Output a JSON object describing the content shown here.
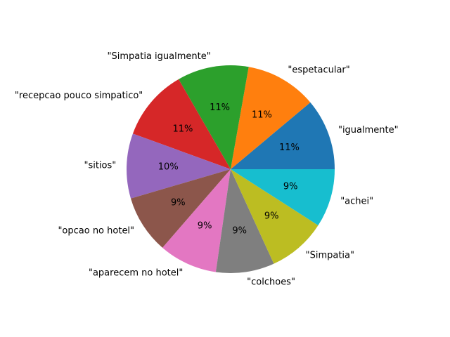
{
  "chart_data": {
    "type": "pie",
    "title": "",
    "start_angle_deg": 0,
    "direction": "counterclockwise",
    "slices": [
      {
        "label": "\"igualmente\"",
        "value": 11,
        "pct_label": "11%",
        "color": "#1f77b4"
      },
      {
        "label": "\"espetacular\"",
        "value": 11,
        "pct_label": "11%",
        "color": "#ff7f0e"
      },
      {
        "label": "\"Simpatia igualmente\"",
        "value": 11,
        "pct_label": "11%",
        "color": "#2ca02c"
      },
      {
        "label": "\"recepcao pouco simpatico\"",
        "value": 11,
        "pct_label": "11%",
        "color": "#d62728"
      },
      {
        "label": "\"sitios\"",
        "value": 10,
        "pct_label": "10%",
        "color": "#9467bd"
      },
      {
        "label": "\"opcao no hotel\"",
        "value": 9,
        "pct_label": "9%",
        "color": "#8c564b"
      },
      {
        "label": "\"aparecem no hotel\"",
        "value": 9,
        "pct_label": "9%",
        "color": "#e377c2"
      },
      {
        "label": "\"colchoes\"",
        "value": 9,
        "pct_label": "9%",
        "color": "#7f7f7f"
      },
      {
        "label": "\"Simpatia\"",
        "value": 9,
        "pct_label": "9%",
        "color": "#bcbd22"
      },
      {
        "label": "\"achei\"",
        "value": 9,
        "pct_label": "9%",
        "color": "#17becf"
      }
    ]
  }
}
